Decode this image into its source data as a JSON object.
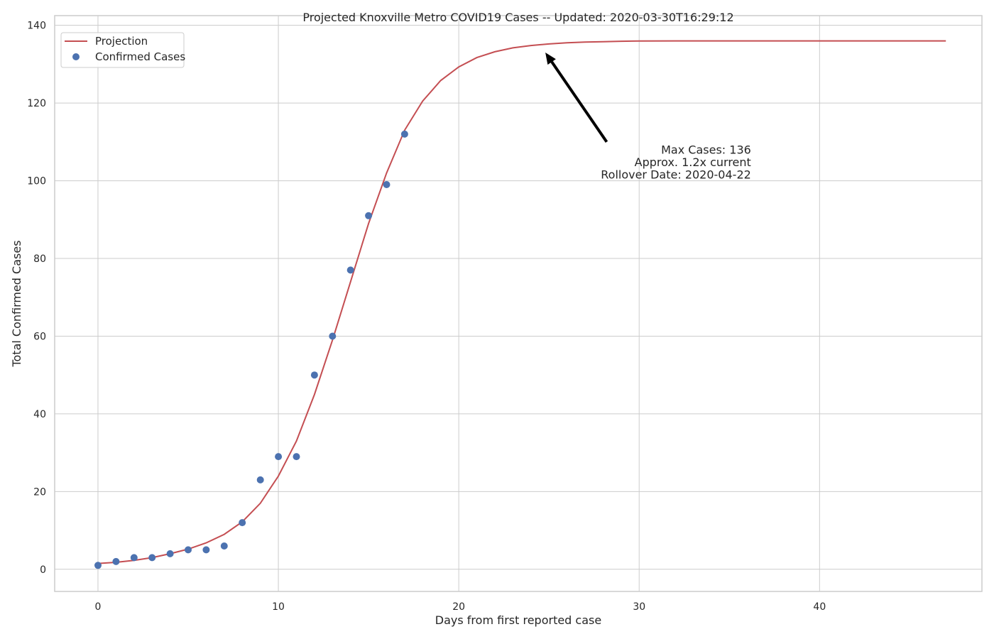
{
  "chart_data": {
    "type": "line",
    "title": "Projected Knoxville Metro COVID19 Cases -- Updated: 2020-03-30T16:29:12",
    "xlabel": "Days from first reported case",
    "ylabel": "Total Confirmed Cases",
    "xlim": [
      -2.4,
      49.0
    ],
    "ylim": [
      -5.7,
      142.5
    ],
    "xticks": [
      0,
      10,
      20,
      30,
      40
    ],
    "yticks": [
      0,
      20,
      40,
      60,
      80,
      100,
      120,
      140
    ],
    "grid": true,
    "legend_placement": "top-left",
    "series": [
      {
        "name": "Projection",
        "kind": "line",
        "color": "#c44e52",
        "x": [
          0,
          1,
          2,
          3,
          4,
          5,
          6,
          7,
          8,
          9,
          10,
          11,
          12,
          13,
          14,
          15,
          16,
          17,
          18,
          19,
          20,
          21,
          22,
          23,
          24,
          25,
          26,
          27,
          28,
          29,
          30,
          32,
          34,
          36,
          38,
          40,
          42,
          44,
          47
        ],
        "y": [
          1.5,
          1.8,
          2.3,
          3.0,
          4.0,
          5.2,
          6.8,
          9.0,
          12.2,
          17.0,
          24.0,
          33.0,
          45.0,
          59.0,
          74.0,
          89.0,
          102.0,
          113.0,
          120.5,
          125.8,
          129.3,
          131.7,
          133.2,
          134.2,
          134.8,
          135.2,
          135.5,
          135.7,
          135.8,
          135.9,
          135.95,
          136.0,
          136.0,
          136.0,
          136.0,
          136.0,
          136.0,
          136.0,
          136.0
        ]
      },
      {
        "name": "Confirmed Cases",
        "kind": "scatter",
        "color": "#4c72b0",
        "x": [
          0,
          1,
          2,
          3,
          4,
          5,
          6,
          7,
          8,
          9,
          10,
          11,
          12,
          13,
          14,
          15,
          16,
          17
        ],
        "y": [
          1,
          2,
          3,
          3,
          4,
          5,
          5,
          6,
          12,
          23,
          29,
          29,
          50,
          60,
          77,
          91,
          99,
          112
        ]
      }
    ],
    "annotation": {
      "lines": [
        "Max Cases: 136",
        "Approx. 1.2x current",
        "Rollover Date: 2020-04-22"
      ],
      "arrow_from": [
        28.2,
        110.0
      ],
      "arrow_to": [
        24.8,
        133.0
      ],
      "text_anchor_point": [
        36.2,
        107.0
      ]
    }
  }
}
